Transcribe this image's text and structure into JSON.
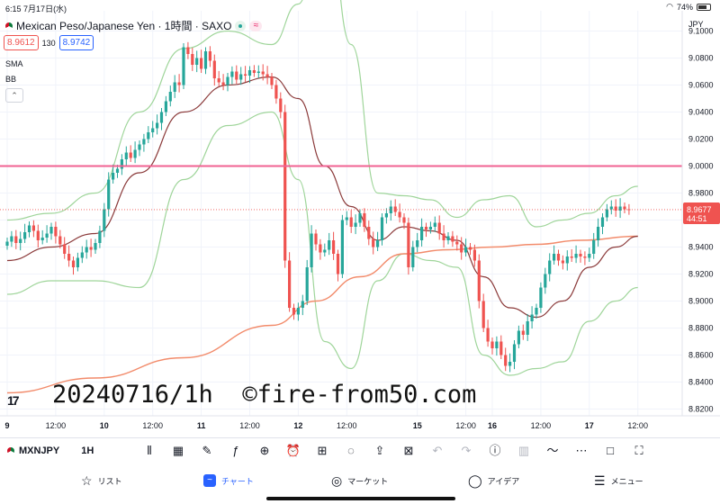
{
  "status_bar": {
    "time": "6:15",
    "date": "7月17日(水)",
    "battery": "74%",
    "battery_level": 0.74
  },
  "header": {
    "symbol_title": "Mexican Peso/Japanese Yen · 1時間 · SAXO",
    "bid": "8.9612",
    "spread": "130",
    "ask": "8.9742",
    "indicators": [
      "SMA",
      "BB"
    ],
    "live_badge": "≈"
  },
  "watermark": "20240716/1h  ©fire-from50.com",
  "tv_logo": "17",
  "toolbar": {
    "symbol": "MXNJPY",
    "interval": "1H",
    "icons": [
      "candles-icon",
      "add-alert-calendar-icon",
      "draw-icon",
      "function-icon",
      "add-icon",
      "alarm-icon",
      "layout-icon",
      "idea-icon",
      "share-icon",
      "clear-icon",
      "undo-icon",
      "redo-icon",
      "info-icon",
      "bar-chart-icon",
      "replay-icon",
      "more-icon",
      "square-icon",
      "fullscreen-icon"
    ]
  },
  "bottom_nav": [
    {
      "label": "リスト",
      "icon": "star-icon"
    },
    {
      "label": "チャート",
      "icon": "chart-icon",
      "active": true
    },
    {
      "label": "マーケット",
      "icon": "compass-icon"
    },
    {
      "label": "アイデア",
      "icon": "lightbulb-icon"
    },
    {
      "label": "メニュー",
      "icon": "menu-icon"
    }
  ],
  "colors": {
    "up": "#26a69a",
    "down": "#ef5350",
    "bb_band": "#9fd59a",
    "bb_mid": "#8b3a3a",
    "sma_long": "#f28b6b",
    "horizontal_line": "#f06292",
    "price_label": "#ef5350"
  },
  "chart_data": {
    "type": "candlestick",
    "currency": "JPY",
    "ylim": [
      8.815,
      9.115
    ],
    "y_ticks": [
      "9.1000",
      "9.0800",
      "9.0600",
      "9.0400",
      "9.0200",
      "9.0000",
      "8.9800",
      "8.9600",
      "8.9400",
      "8.9200",
      "8.9000",
      "8.8800",
      "8.8600",
      "8.8400",
      "8.8200"
    ],
    "y_tick_values": [
      9.1,
      9.08,
      9.06,
      9.04,
      9.02,
      9.0,
      8.98,
      8.96,
      8.94,
      8.92,
      8.9,
      8.88,
      8.86,
      8.84,
      8.82
    ],
    "x_ticks": [
      {
        "label": "9",
        "bar": 0
      },
      {
        "label": "12:00",
        "bar": 11
      },
      {
        "label": "10",
        "bar": 22
      },
      {
        "label": "12:00",
        "bar": 33
      },
      {
        "label": "11",
        "bar": 44
      },
      {
        "label": "12:00",
        "bar": 55
      },
      {
        "label": "12",
        "bar": 66
      },
      {
        "label": "12:00",
        "bar": 77
      },
      {
        "label": "15",
        "bar": 93
      },
      {
        "label": "12:00",
        "bar": 104
      },
      {
        "label": "16",
        "bar": 110
      },
      {
        "label": "12:00",
        "bar": 121
      },
      {
        "label": "17",
        "bar": 132
      },
      {
        "label": "12:00",
        "bar": 143
      }
    ],
    "horizontal_line": {
      "value": 9.0,
      "label": "9.0000"
    },
    "current_price": {
      "value": 8.9677,
      "label": "8.9677",
      "countdown": "44:51"
    },
    "closes": [
      8.944,
      8.948,
      8.943,
      8.946,
      8.951,
      8.956,
      8.952,
      8.945,
      8.947,
      8.95,
      8.955,
      8.948,
      8.942,
      8.935,
      8.93,
      8.925,
      8.932,
      8.936,
      8.94,
      8.938,
      8.943,
      8.952,
      8.968,
      8.99,
      8.995,
      8.998,
      9.005,
      9.01,
      9.006,
      9.012,
      9.016,
      9.02,
      9.025,
      9.028,
      9.032,
      9.04,
      9.048,
      9.055,
      9.062,
      9.06,
      9.088,
      9.083,
      9.075,
      9.08,
      9.072,
      9.085,
      9.078,
      9.065,
      9.062,
      9.06,
      9.066,
      9.07,
      9.064,
      9.068,
      9.067,
      9.071,
      9.069,
      9.07,
      9.068,
      9.066,
      9.06,
      9.05,
      9.04,
      8.93,
      8.895,
      8.89,
      8.895,
      8.9,
      8.925,
      8.95,
      8.942,
      8.936,
      8.938,
      8.945,
      8.935,
      8.92,
      8.96,
      8.962,
      8.955,
      8.958,
      8.965,
      8.955,
      8.946,
      8.94,
      8.945,
      8.962,
      8.965,
      8.97,
      8.966,
      8.962,
      8.958,
      8.925,
      8.94,
      8.945,
      8.955,
      8.953,
      8.955,
      8.958,
      8.95,
      8.945,
      8.948,
      8.944,
      8.942,
      8.936,
      8.94,
      8.938,
      8.93,
      8.9,
      8.88,
      8.87,
      8.865,
      8.87,
      8.86,
      8.852,
      8.855,
      8.868,
      8.878,
      8.875,
      8.885,
      8.89,
      8.895,
      8.91,
      8.92,
      8.93,
      8.935,
      8.93,
      8.928,
      8.933,
      8.932,
      8.935,
      8.933,
      8.932,
      8.935,
      8.945,
      8.955,
      8.962,
      8.968,
      8.97,
      8.967,
      8.97,
      8.968,
      8.9677
    ]
  },
  "bollinger": {
    "upper": [
      [
        0,
        8.96
      ],
      [
        10,
        8.965
      ],
      [
        20,
        8.98
      ],
      [
        30,
        9.04
      ],
      [
        40,
        9.087
      ],
      [
        50,
        9.1
      ],
      [
        60,
        9.09
      ],
      [
        66,
        9.12
      ],
      [
        72,
        9.2
      ],
      [
        78,
        9.09
      ],
      [
        84,
        8.98
      ],
      [
        90,
        8.978
      ],
      [
        96,
        8.975
      ],
      [
        102,
        8.962
      ],
      [
        108,
        8.975
      ],
      [
        114,
        8.978
      ],
      [
        120,
        8.955
      ],
      [
        126,
        8.96
      ],
      [
        132,
        8.965
      ],
      [
        138,
        8.978
      ],
      [
        143,
        8.985
      ]
    ],
    "middle": [
      [
        0,
        8.93
      ],
      [
        10,
        8.94
      ],
      [
        20,
        8.95
      ],
      [
        30,
        8.995
      ],
      [
        40,
        9.04
      ],
      [
        50,
        9.06
      ],
      [
        60,
        9.066
      ],
      [
        66,
        9.05
      ],
      [
        72,
        9.0
      ],
      [
        78,
        8.97
      ],
      [
        84,
        8.945
      ],
      [
        90,
        8.955
      ],
      [
        96,
        8.952
      ],
      [
        102,
        8.945
      ],
      [
        108,
        8.918
      ],
      [
        114,
        8.895
      ],
      [
        120,
        8.888
      ],
      [
        126,
        8.9
      ],
      [
        132,
        8.925
      ],
      [
        138,
        8.94
      ],
      [
        143,
        8.948
      ]
    ],
    "lower": [
      [
        0,
        8.905
      ],
      [
        10,
        8.915
      ],
      [
        20,
        8.915
      ],
      [
        30,
        8.91
      ],
      [
        40,
        8.99
      ],
      [
        50,
        9.03
      ],
      [
        60,
        9.04
      ],
      [
        66,
        8.99
      ],
      [
        72,
        8.87
      ],
      [
        78,
        8.85
      ],
      [
        84,
        8.915
      ],
      [
        90,
        8.935
      ],
      [
        96,
        8.93
      ],
      [
        102,
        8.925
      ],
      [
        108,
        8.86
      ],
      [
        114,
        8.845
      ],
      [
        120,
        8.85
      ],
      [
        126,
        8.855
      ],
      [
        132,
        8.885
      ],
      [
        138,
        8.9
      ],
      [
        143,
        8.91
      ]
    ]
  },
  "sma_long": [
    [
      0,
      8.832
    ],
    [
      20,
      8.843
    ],
    [
      40,
      8.858
    ],
    [
      60,
      8.882
    ],
    [
      70,
      8.9
    ],
    [
      80,
      8.918
    ],
    [
      90,
      8.935
    ],
    [
      100,
      8.938
    ],
    [
      110,
      8.94
    ],
    [
      120,
      8.942
    ],
    [
      130,
      8.945
    ],
    [
      143,
      8.948
    ]
  ]
}
